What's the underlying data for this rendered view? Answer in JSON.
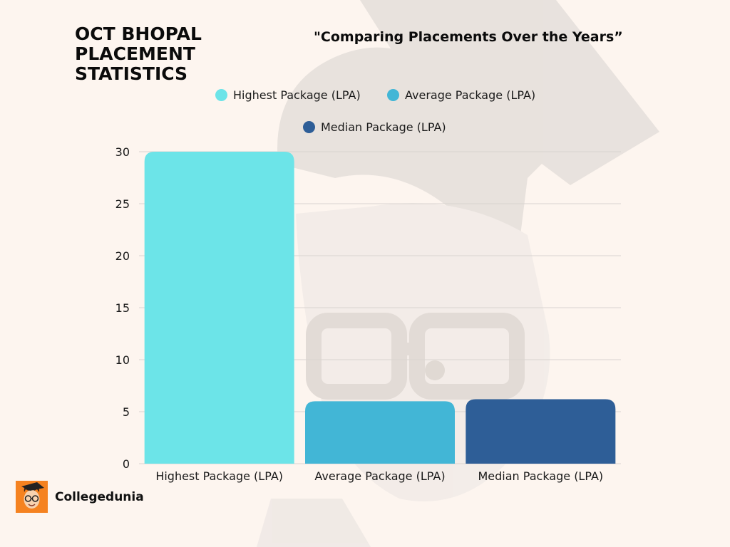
{
  "header": {
    "page_title": "OCT BHOPAL PLACEMENT STATISTICS"
  },
  "brand": {
    "name": "Collegedunia",
    "logo_icon": "collegedunia-mascot-icon",
    "logo_color": "#f58220"
  },
  "colors": {
    "background": "#fdf5ef",
    "watermark": "#e9e3df"
  },
  "chart_data": {
    "type": "bar",
    "title": "\"Comparing Placements Over the Years”",
    "categories": [
      "Highest Package (LPA)",
      "Average Package (LPA)",
      "Median Package (LPA)"
    ],
    "values": [
      30,
      6,
      6.2
    ],
    "colors": [
      "#6ce4e8",
      "#42b6d6",
      "#2e5e97"
    ],
    "legend": [
      {
        "label": "Highest Package (LPA)",
        "color": "#6ce4e8"
      },
      {
        "label": "Average Package (LPA)",
        "color": "#42b6d6"
      },
      {
        "label": "Median Package (LPA)",
        "color": "#2e5e97"
      }
    ],
    "legend_position": "top",
    "xlabel": "",
    "ylabel": "",
    "ylim": [
      0,
      30
    ],
    "yticks": [
      0,
      5,
      10,
      15,
      20,
      25,
      30
    ],
    "grid": true
  }
}
